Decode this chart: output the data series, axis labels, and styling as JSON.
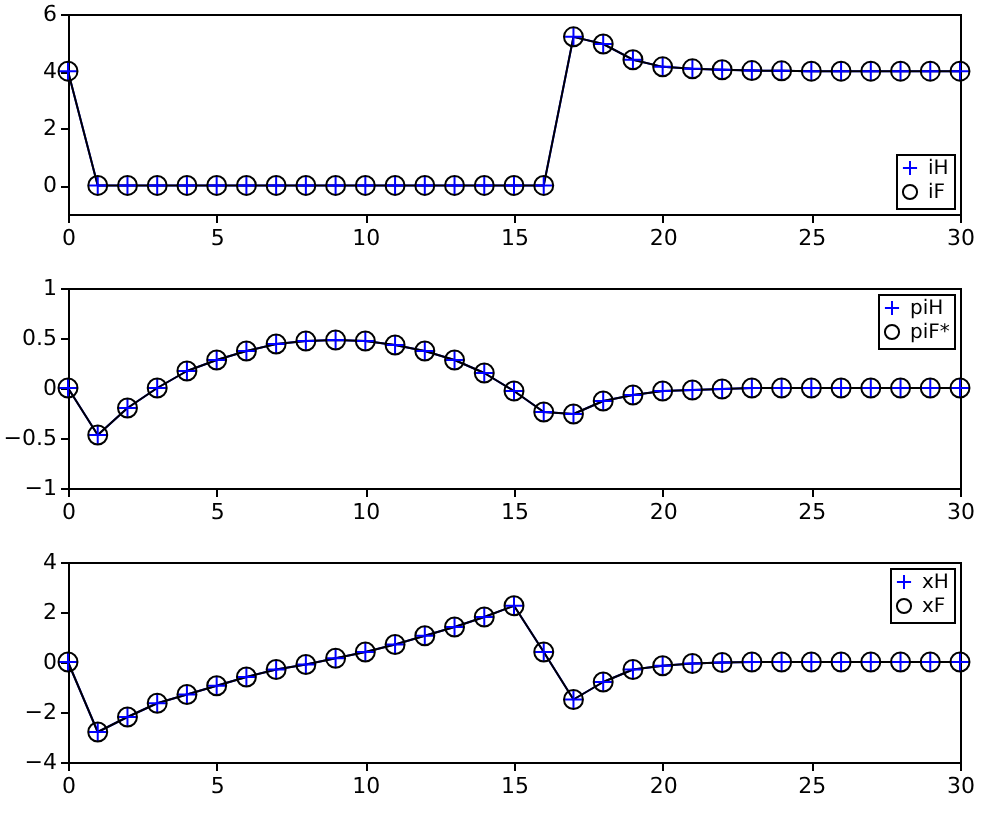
{
  "chart_data": [
    {
      "type": "line",
      "x": [
        0,
        1,
        2,
        3,
        4,
        5,
        6,
        7,
        8,
        9,
        10,
        11,
        12,
        13,
        14,
        15,
        16,
        17,
        18,
        19,
        20,
        21,
        22,
        23,
        24,
        25,
        26,
        27,
        28,
        29,
        30
      ],
      "xlim": [
        0,
        30
      ],
      "xticks": [
        0,
        5,
        10,
        15,
        20,
        25,
        30
      ],
      "ylim": [
        -1,
        6
      ],
      "yticks": [
        0,
        2,
        4,
        6
      ],
      "grid": false,
      "legend": "bottom right",
      "series": [
        {
          "name": "iH",
          "color": "#0000ff",
          "marker": "cross",
          "values": [
            4,
            0,
            0,
            0,
            0,
            0,
            0,
            0,
            0,
            0,
            0,
            0,
            0,
            0,
            0,
            0,
            0,
            5.2,
            4.95,
            4.4,
            4.15,
            4.08,
            4.05,
            4.02,
            4.01,
            4,
            4,
            4,
            4,
            4,
            4
          ]
        },
        {
          "name": "iF",
          "color": "#000000",
          "marker": "circle",
          "values": [
            4,
            0,
            0,
            0,
            0,
            0,
            0,
            0,
            0,
            0,
            0,
            0,
            0,
            0,
            0,
            0,
            0,
            5.2,
            4.95,
            4.4,
            4.15,
            4.08,
            4.05,
            4.02,
            4.01,
            4,
            4,
            4,
            4,
            4,
            4
          ]
        }
      ]
    },
    {
      "type": "line",
      "x": [
        0,
        1,
        2,
        3,
        4,
        5,
        6,
        7,
        8,
        9,
        10,
        11,
        12,
        13,
        14,
        15,
        16,
        17,
        18,
        19,
        20,
        21,
        22,
        23,
        24,
        25,
        26,
        27,
        28,
        29,
        30
      ],
      "xlim": [
        0,
        30
      ],
      "xticks": [
        0,
        5,
        10,
        15,
        20,
        25,
        30
      ],
      "ylim": [
        -1,
        1
      ],
      "yticks": [
        -1,
        -0.5,
        0,
        0.5,
        1
      ],
      "grid": false,
      "legend": "top right",
      "series": [
        {
          "name": "piH",
          "color": "#0000ff",
          "marker": "cross",
          "values": [
            0,
            -0.47,
            -0.2,
            0,
            0.17,
            0.28,
            0.37,
            0.44,
            0.47,
            0.48,
            0.47,
            0.43,
            0.37,
            0.28,
            0.15,
            -0.03,
            -0.24,
            -0.26,
            -0.13,
            -0.07,
            -0.03,
            -0.02,
            -0.01,
            0,
            0,
            0,
            0,
            0,
            0,
            0,
            0
          ]
        },
        {
          "name": "piF*",
          "color": "#000000",
          "marker": "circle",
          "values": [
            0,
            -0.47,
            -0.2,
            0,
            0.17,
            0.28,
            0.37,
            0.44,
            0.47,
            0.48,
            0.47,
            0.43,
            0.37,
            0.28,
            0.15,
            -0.03,
            -0.24,
            -0.26,
            -0.13,
            -0.07,
            -0.03,
            -0.02,
            -0.01,
            0,
            0,
            0,
            0,
            0,
            0,
            0,
            0
          ]
        }
      ]
    },
    {
      "type": "line",
      "x": [
        0,
        1,
        2,
        3,
        4,
        5,
        6,
        7,
        8,
        9,
        10,
        11,
        12,
        13,
        14,
        15,
        16,
        17,
        18,
        19,
        20,
        21,
        22,
        23,
        24,
        25,
        26,
        27,
        28,
        29,
        30
      ],
      "xlim": [
        0,
        30
      ],
      "xticks": [
        0,
        5,
        10,
        15,
        20,
        25,
        30
      ],
      "ylim": [
        -4,
        4
      ],
      "yticks": [
        -4,
        -2,
        0,
        2,
        4
      ],
      "grid": false,
      "legend": "top right",
      "series": [
        {
          "name": "xH",
          "color": "#0000ff",
          "marker": "cross",
          "values": [
            0,
            -2.8,
            -2.2,
            -1.65,
            -1.3,
            -0.95,
            -0.6,
            -0.3,
            -0.1,
            0.15,
            0.4,
            0.7,
            1.05,
            1.4,
            1.8,
            2.25,
            0.4,
            -1.5,
            -0.8,
            -0.3,
            -0.15,
            -0.06,
            -0.02,
            0,
            0,
            0,
            0,
            0,
            0,
            0,
            0
          ]
        },
        {
          "name": "xF",
          "color": "#000000",
          "marker": "circle",
          "values": [
            0,
            -2.8,
            -2.2,
            -1.65,
            -1.3,
            -0.95,
            -0.6,
            -0.3,
            -0.1,
            0.15,
            0.4,
            0.7,
            1.05,
            1.4,
            1.8,
            2.25,
            0.4,
            -1.5,
            -0.8,
            -0.3,
            -0.15,
            -0.06,
            -0.02,
            0,
            0,
            0,
            0,
            0,
            0,
            0,
            0
          ]
        }
      ]
    }
  ]
}
